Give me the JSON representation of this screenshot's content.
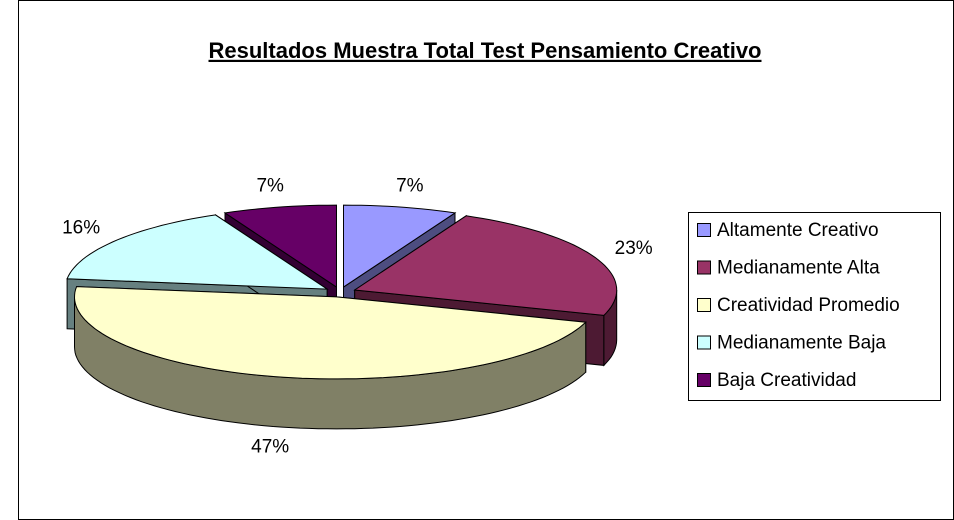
{
  "chart_data": {
    "type": "pie3d",
    "title": "Resultados Muestra Total Test Pensamiento Creativo",
    "categories": [
      "Altamente Creativo",
      "Medianamente Alta",
      "Creatividad Promedio",
      "Medianamente Baja",
      "Baja Creatividad"
    ],
    "values": [
      7,
      23,
      47,
      16,
      7
    ],
    "value_labels": [
      "7%",
      "23%",
      "47%",
      "16%",
      "7%"
    ],
    "colors": [
      "#9999ff",
      "#993366",
      "#ffffcc",
      "#ccffff",
      "#660066"
    ],
    "legend": "right"
  }
}
